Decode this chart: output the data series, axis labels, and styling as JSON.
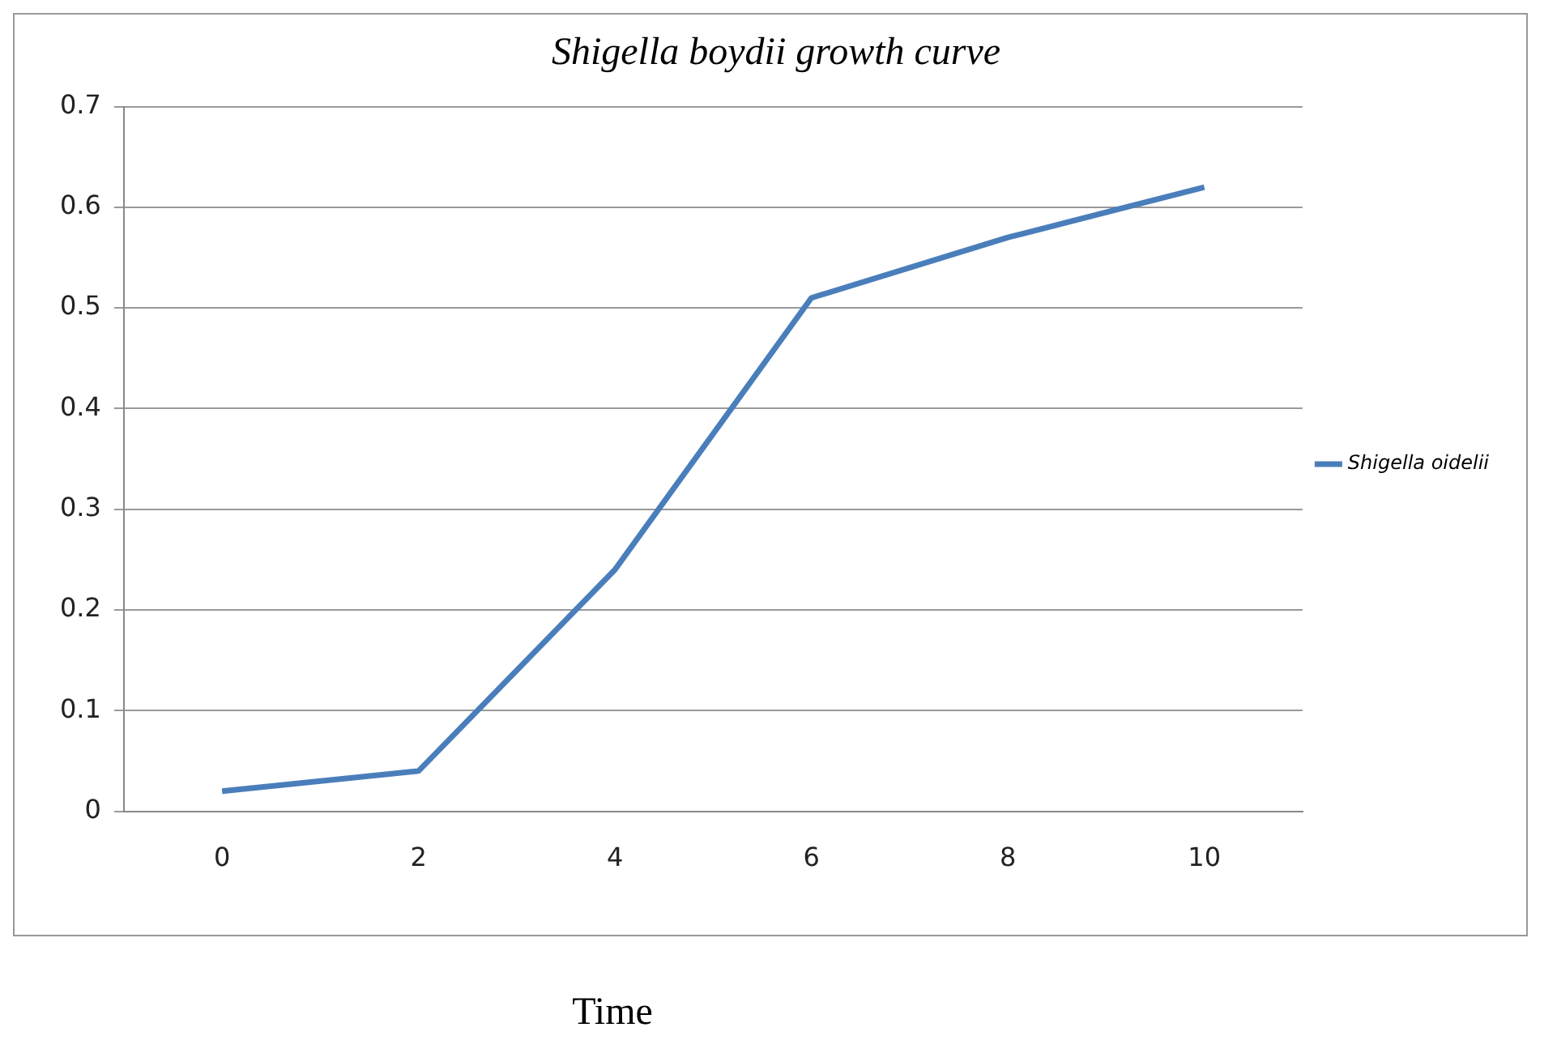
{
  "chart_data": {
    "type": "line",
    "title": "Shigella boydii growth curve",
    "xlabel": "Time",
    "categories": [
      "0",
      "2",
      "4",
      "6",
      "8",
      "10"
    ],
    "series": [
      {
        "name": "Shigella oidelii",
        "color": "#4a7ebb",
        "values": [
          0.02,
          0.04,
          0.24,
          0.51,
          0.57,
          0.62
        ]
      }
    ],
    "ylim": [
      0,
      0.7
    ],
    "yticks": [
      0,
      0.1,
      0.2,
      0.3,
      0.4,
      0.5,
      0.6,
      0.7
    ],
    "grid": "y",
    "legend": "right",
    "marker": "none"
  }
}
